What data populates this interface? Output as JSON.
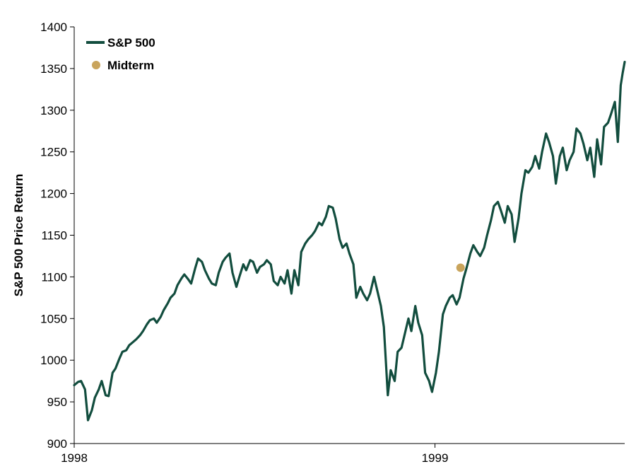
{
  "chart_data": {
    "type": "line",
    "title": "",
    "ylabel": "S&P 500 Price Return",
    "xlabel": "",
    "ylim": [
      900,
      1400
    ],
    "yticks": [
      900,
      950,
      1000,
      1050,
      1100,
      1150,
      1200,
      1250,
      1300,
      1350,
      1400
    ],
    "xlim": [
      "1998-01-02",
      "1999-07-16"
    ],
    "xticks": [
      {
        "date": "1998-01-02",
        "label": "1998"
      },
      {
        "date": "1999-01-04",
        "label": "1999"
      }
    ],
    "grid": false,
    "legend_position": "top-left",
    "colors": {
      "line": "#124D3E",
      "marker": "#C9A45C"
    },
    "series": [
      {
        "name": "S&P 500",
        "kind": "line",
        "points": [
          [
            "1998-01-02",
            970
          ],
          [
            "1998-01-06",
            974
          ],
          [
            "1998-01-09",
            975
          ],
          [
            "1998-01-13",
            965
          ],
          [
            "1998-01-16",
            928
          ],
          [
            "1998-01-20",
            940
          ],
          [
            "1998-01-23",
            955
          ],
          [
            "1998-01-27",
            965
          ],
          [
            "1998-01-30",
            975
          ],
          [
            "1998-02-03",
            958
          ],
          [
            "1998-02-06",
            957
          ],
          [
            "1998-02-10",
            985
          ],
          [
            "1998-02-13",
            990
          ],
          [
            "1998-02-17",
            1002
          ],
          [
            "1998-02-20",
            1010
          ],
          [
            "1998-02-24",
            1012
          ],
          [
            "1998-02-27",
            1018
          ],
          [
            "1998-03-03",
            1022
          ],
          [
            "1998-03-06",
            1025
          ],
          [
            "1998-03-10",
            1030
          ],
          [
            "1998-03-13",
            1035
          ],
          [
            "1998-03-17",
            1043
          ],
          [
            "1998-03-20",
            1048
          ],
          [
            "1998-03-24",
            1050
          ],
          [
            "1998-03-27",
            1045
          ],
          [
            "1998-03-31",
            1052
          ],
          [
            "1998-04-03",
            1060
          ],
          [
            "1998-04-07",
            1068
          ],
          [
            "1998-04-10",
            1075
          ],
          [
            "1998-04-14",
            1080
          ],
          [
            "1998-04-17",
            1090
          ],
          [
            "1998-04-21",
            1098
          ],
          [
            "1998-04-24",
            1103
          ],
          [
            "1998-04-28",
            1097
          ],
          [
            "1998-05-01",
            1092
          ],
          [
            "1998-05-05",
            1110
          ],
          [
            "1998-05-08",
            1122
          ],
          [
            "1998-05-12",
            1118
          ],
          [
            "1998-05-15",
            1108
          ],
          [
            "1998-05-19",
            1098
          ],
          [
            "1998-05-22",
            1092
          ],
          [
            "1998-05-26",
            1090
          ],
          [
            "1998-05-29",
            1105
          ],
          [
            "1998-06-02",
            1118
          ],
          [
            "1998-06-05",
            1123
          ],
          [
            "1998-06-09",
            1128
          ],
          [
            "1998-06-12",
            1105
          ],
          [
            "1998-06-16",
            1088
          ],
          [
            "1998-06-19",
            1100
          ],
          [
            "1998-06-23",
            1115
          ],
          [
            "1998-06-26",
            1108
          ],
          [
            "1998-06-30",
            1120
          ],
          [
            "1998-07-03",
            1118
          ],
          [
            "1998-07-07",
            1105
          ],
          [
            "1998-07-10",
            1112
          ],
          [
            "1998-07-14",
            1115
          ],
          [
            "1998-07-17",
            1120
          ],
          [
            "1998-07-21",
            1115
          ],
          [
            "1998-07-24",
            1095
          ],
          [
            "1998-07-28",
            1090
          ],
          [
            "1998-07-31",
            1100
          ],
          [
            "1998-08-04",
            1092
          ],
          [
            "1998-08-07",
            1108
          ],
          [
            "1998-08-11",
            1080
          ],
          [
            "1998-08-14",
            1108
          ],
          [
            "1998-08-18",
            1090
          ],
          [
            "1998-08-21",
            1130
          ],
          [
            "1998-08-25",
            1140
          ],
          [
            "1998-08-28",
            1145
          ],
          [
            "1998-09-01",
            1150
          ],
          [
            "1998-09-04",
            1155
          ],
          [
            "1998-09-08",
            1165
          ],
          [
            "1998-09-11",
            1162
          ],
          [
            "1998-09-15",
            1172
          ],
          [
            "1998-09-18",
            1185
          ],
          [
            "1998-09-22",
            1183
          ],
          [
            "1998-09-25",
            1170
          ],
          [
            "1998-09-29",
            1145
          ],
          [
            "1998-10-02",
            1135
          ],
          [
            "1998-10-06",
            1140
          ],
          [
            "1998-10-09",
            1128
          ],
          [
            "1998-10-13",
            1115
          ],
          [
            "1998-10-16",
            1075
          ],
          [
            "1998-10-20",
            1088
          ],
          [
            "1998-10-23",
            1080
          ],
          [
            "1998-10-27",
            1072
          ],
          [
            "1998-10-30",
            1080
          ],
          [
            "1998-11-03",
            1100
          ],
          [
            "1998-11-06",
            1085
          ],
          [
            "1998-11-10",
            1065
          ],
          [
            "1998-11-13",
            1040
          ],
          [
            "1998-11-17",
            958
          ],
          [
            "1998-11-20",
            988
          ],
          [
            "1998-11-24",
            975
          ],
          [
            "1998-11-27",
            1010
          ],
          [
            "1998-12-01",
            1015
          ],
          [
            "1998-12-04",
            1030
          ],
          [
            "1998-12-08",
            1050
          ],
          [
            "1998-12-11",
            1035
          ],
          [
            "1998-12-15",
            1065
          ],
          [
            "1998-12-18",
            1045
          ],
          [
            "1998-12-22",
            1030
          ],
          [
            "1998-12-25",
            985
          ],
          [
            "1998-12-29",
            975
          ],
          [
            "1999-01-01",
            962
          ],
          [
            "1999-01-05",
            985
          ],
          [
            "1999-01-08",
            1010
          ],
          [
            "1999-01-12",
            1055
          ],
          [
            "1999-01-15",
            1065
          ],
          [
            "1999-01-19",
            1075
          ],
          [
            "1999-01-22",
            1078
          ],
          [
            "1999-01-26",
            1067
          ],
          [
            "1999-01-29",
            1075
          ],
          [
            "1999-02-02",
            1098
          ],
          [
            "1999-02-05",
            1110
          ],
          [
            "1999-02-09",
            1128
          ],
          [
            "1999-02-12",
            1138
          ],
          [
            "1999-02-16",
            1130
          ],
          [
            "1999-02-19",
            1125
          ],
          [
            "1999-02-23",
            1135
          ],
          [
            "1999-02-26",
            1150
          ],
          [
            "1999-03-02",
            1168
          ],
          [
            "1999-03-05",
            1185
          ],
          [
            "1999-03-09",
            1190
          ],
          [
            "1999-03-12",
            1180
          ],
          [
            "1999-03-16",
            1165
          ],
          [
            "1999-03-19",
            1185
          ],
          [
            "1999-03-23",
            1175
          ],
          [
            "1999-03-26",
            1142
          ],
          [
            "1999-03-30",
            1170
          ],
          [
            "1999-04-02",
            1200
          ],
          [
            "1999-04-06",
            1228
          ],
          [
            "1999-04-09",
            1225
          ],
          [
            "1999-04-13",
            1232
          ],
          [
            "1999-04-16",
            1245
          ],
          [
            "1999-04-20",
            1230
          ],
          [
            "1999-04-23",
            1250
          ],
          [
            "1999-04-27",
            1272
          ],
          [
            "1999-04-30",
            1262
          ],
          [
            "1999-05-04",
            1245
          ],
          [
            "1999-05-07",
            1212
          ],
          [
            "1999-05-11",
            1245
          ],
          [
            "1999-05-14",
            1255
          ],
          [
            "1999-05-18",
            1228
          ],
          [
            "1999-05-21",
            1240
          ],
          [
            "1999-05-25",
            1250
          ],
          [
            "1999-05-28",
            1278
          ],
          [
            "1999-06-01",
            1272
          ],
          [
            "1999-06-04",
            1260
          ],
          [
            "1999-06-08",
            1240
          ],
          [
            "1999-06-11",
            1255
          ],
          [
            "1999-06-15",
            1220
          ],
          [
            "1999-06-18",
            1265
          ],
          [
            "1999-06-22",
            1235
          ],
          [
            "1999-06-25",
            1280
          ],
          [
            "1999-06-29",
            1285
          ],
          [
            "1999-07-02",
            1295
          ],
          [
            "1999-07-06",
            1310
          ],
          [
            "1999-07-09",
            1262
          ],
          [
            "1999-07-12",
            1330
          ],
          [
            "1999-07-14",
            1345
          ],
          [
            "1999-07-16",
            1358
          ]
        ]
      },
      {
        "name": "Midterm",
        "kind": "marker",
        "points": [
          [
            "1999-01-30",
            1111
          ]
        ]
      }
    ]
  }
}
